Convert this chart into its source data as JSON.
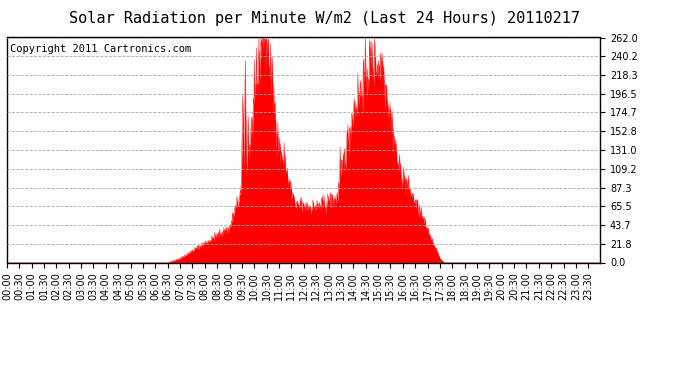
{
  "title": "Solar Radiation per Minute W/m2 (Last 24 Hours) 20110217",
  "copyright": "Copyright 2011 Cartronics.com",
  "background_color": "#ffffff",
  "plot_background": "#ffffff",
  "line_color": "#ff0000",
  "fill_color": "#ff0000",
  "grid_color": "#dddddd",
  "yticks": [
    0.0,
    21.8,
    43.7,
    65.5,
    87.3,
    109.2,
    131.0,
    152.8,
    174.7,
    196.5,
    218.3,
    240.2,
    262.0
  ],
  "ymax": 262.0,
  "ymin": 0.0,
  "total_minutes": 1440,
  "title_fontsize": 11,
  "tick_fontsize": 7,
  "copyright_fontsize": 7.5
}
